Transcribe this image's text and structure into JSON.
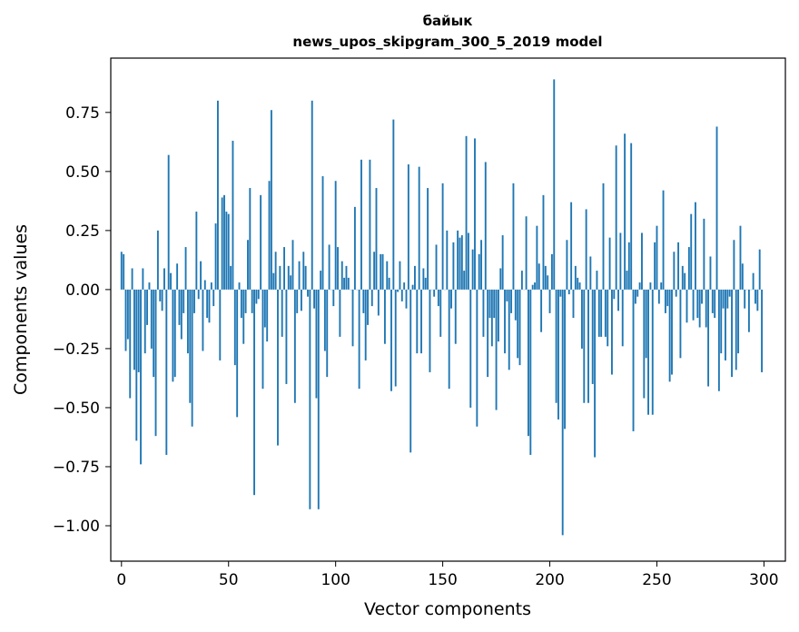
{
  "chart_data": {
    "type": "bar",
    "title": "байык",
    "subtitle": "news_upos_skipgram_300_5_2019 model",
    "xlabel": "Vector components",
    "ylabel": "Components values",
    "xlim": [
      -5,
      310
    ],
    "ylim": [
      -1.15,
      0.98
    ],
    "xticks": [
      0,
      50,
      100,
      150,
      200,
      250,
      300
    ],
    "xtick_labels": [
      "0",
      "50",
      "100",
      "150",
      "200",
      "250",
      "300"
    ],
    "yticks": [
      -1.0,
      -0.75,
      -0.5,
      -0.25,
      0.0,
      0.25,
      0.5,
      0.75
    ],
    "ytick_labels": [
      "−1.00",
      "−0.75",
      "−0.50",
      "−0.25",
      "0.00",
      "0.25",
      "0.50",
      "0.75"
    ],
    "bar_color": "#1f77b4",
    "values": [
      0.16,
      0.15,
      -0.26,
      -0.21,
      -0.46,
      0.09,
      -0.34,
      -0.64,
      -0.35,
      -0.74,
      0.09,
      -0.27,
      -0.15,
      0.03,
      -0.25,
      -0.37,
      -0.62,
      0.25,
      -0.05,
      -0.09,
      0.09,
      -0.7,
      0.57,
      0.07,
      -0.39,
      -0.37,
      0.11,
      -0.15,
      -0.21,
      -0.1,
      0.18,
      -0.27,
      -0.48,
      -0.58,
      -0.1,
      0.33,
      -0.04,
      0.12,
      -0.26,
      0.04,
      -0.12,
      -0.14,
      0.03,
      -0.07,
      0.28,
      0.8,
      -0.3,
      0.39,
      0.4,
      0.33,
      0.32,
      0.1,
      0.63,
      -0.32,
      -0.54,
      0.03,
      -0.12,
      -0.23,
      -0.1,
      0.21,
      0.43,
      -0.1,
      -0.87,
      -0.06,
      -0.04,
      0.4,
      -0.42,
      -0.16,
      -0.22,
      0.46,
      0.76,
      0.07,
      0.16,
      -0.66,
      0.1,
      -0.2,
      0.18,
      -0.4,
      0.1,
      0.06,
      0.21,
      -0.48,
      -0.1,
      0.12,
      -0.09,
      0.16,
      0.1,
      -0.03,
      -0.93,
      0.8,
      -0.08,
      -0.46,
      -0.93,
      0.08,
      0.48,
      -0.26,
      -0.37,
      0.19,
      0.0,
      -0.07,
      0.46,
      0.18,
      -0.2,
      0.12,
      0.05,
      0.1,
      0.05,
      0.0,
      -0.24,
      0.35,
      0.0,
      -0.42,
      0.55,
      -0.1,
      -0.3,
      -0.15,
      0.55,
      -0.07,
      0.16,
      0.43,
      -0.11,
      0.15,
      0.15,
      -0.23,
      0.12,
      0.05,
      -0.43,
      0.72,
      -0.41,
      -0.01,
      0.12,
      -0.05,
      0.03,
      -0.08,
      0.53,
      -0.69,
      0.02,
      0.1,
      -0.27,
      0.52,
      -0.27,
      0.09,
      0.05,
      0.43,
      -0.35,
      0.0,
      -0.03,
      0.19,
      -0.07,
      -0.2,
      0.45,
      0.0,
      0.25,
      -0.42,
      -0.08,
      0.2,
      -0.23,
      0.25,
      0.22,
      0.23,
      0.08,
      0.65,
      0.24,
      -0.5,
      0.17,
      0.64,
      -0.58,
      0.15,
      0.21,
      -0.2,
      0.54,
      -0.37,
      -0.12,
      -0.24,
      -0.12,
      -0.51,
      -0.22,
      0.09,
      0.23,
      -0.27,
      -0.05,
      -0.34,
      -0.1,
      0.45,
      -0.13,
      -0.29,
      -0.32,
      0.08,
      0.0,
      0.31,
      -0.62,
      -0.7,
      0.02,
      0.03,
      0.27,
      0.11,
      -0.18,
      0.4,
      0.1,
      0.06,
      -0.1,
      0.15,
      0.89,
      -0.48,
      -0.55,
      -0.03,
      -1.04,
      -0.59,
      0.21,
      -0.02,
      0.37,
      -0.12,
      0.1,
      0.05,
      0.03,
      -0.25,
      -0.48,
      0.34,
      -0.48,
      0.14,
      -0.4,
      -0.71,
      0.08,
      -0.2,
      -0.2,
      0.45,
      -0.2,
      -0.24,
      0.22,
      -0.36,
      -0.04,
      0.61,
      -0.09,
      0.24,
      -0.24,
      0.66,
      0.08,
      0.2,
      0.62,
      -0.6,
      -0.06,
      -0.03,
      0.03,
      0.24,
      -0.46,
      -0.29,
      -0.53,
      0.03,
      -0.53,
      0.2,
      0.27,
      -0.06,
      0.03,
      0.42,
      -0.1,
      -0.07,
      -0.39,
      -0.36,
      0.16,
      -0.03,
      0.2,
      -0.29,
      0.1,
      0.07,
      -0.14,
      0.18,
      0.32,
      -0.13,
      0.37,
      -0.12,
      -0.16,
      -0.06,
      0.3,
      -0.16,
      -0.41,
      0.14,
      -0.1,
      -0.12,
      0.69,
      -0.43,
      -0.27,
      -0.08,
      -0.3,
      -0.08,
      -0.03,
      -0.37,
      0.21,
      -0.34,
      -0.27,
      0.27,
      0.11,
      -0.08,
      0.0,
      -0.18,
      0.0,
      0.07,
      -0.06,
      -0.09,
      0.17,
      -0.35
    ]
  }
}
